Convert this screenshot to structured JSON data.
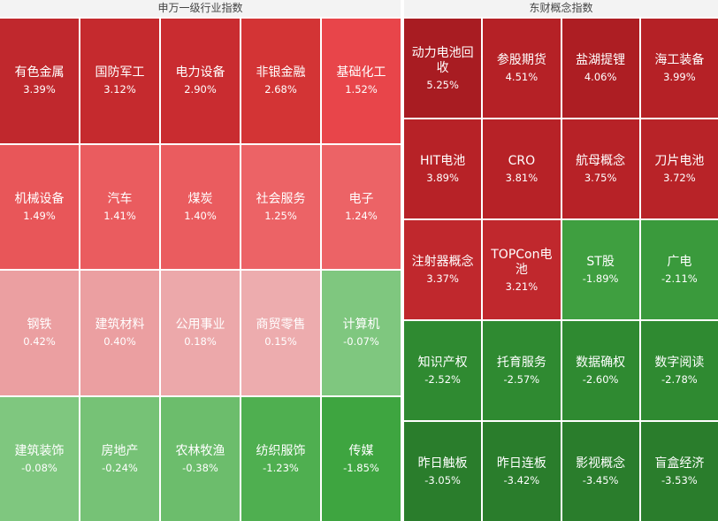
{
  "chart_data": [
    {
      "type": "heatmap",
      "title": "申万一级行业指数",
      "categories": [
        "有色金属",
        "国防军工",
        "电力设备",
        "非银金融",
        "基础化工",
        "机械设备",
        "汽车",
        "煤炭",
        "社会服务",
        "电子",
        "钢铁",
        "建筑材料",
        "公用事业",
        "商贸零售",
        "计算机",
        "建筑装饰",
        "房地产",
        "农林牧渔",
        "纺织服饰",
        "传媒"
      ],
      "values": [
        3.39,
        3.12,
        2.9,
        2.68,
        1.52,
        1.49,
        1.41,
        1.4,
        1.25,
        1.24,
        0.42,
        0.4,
        0.18,
        0.15,
        -0.07,
        -0.08,
        -0.24,
        -0.38,
        -1.23,
        -1.85
      ],
      "value_labels": [
        "3.39%",
        "3.12%",
        "2.90%",
        "2.68%",
        "1.52%",
        "1.49%",
        "1.41%",
        "1.40%",
        "1.25%",
        "1.24%",
        "0.42%",
        "0.40%",
        "0.18%",
        "0.15%",
        "-0.07%",
        "-0.08%",
        "-0.24%",
        "-0.38%",
        "-1.23%",
        "-1.85%"
      ],
      "colors": [
        "#c0282d",
        "#c52a2e",
        "#c92c30",
        "#d33435",
        "#e8454a",
        "#e85659",
        "#ea5c5f",
        "#ea5c5f",
        "#ec6366",
        "#ec6366",
        "#eb9fa1",
        "#eb9fa1",
        "#eca8aa",
        "#edacae",
        "#7fc77f",
        "#7fc77f",
        "#76c276",
        "#6cbd6c",
        "#4faf50",
        "#3ea540"
      ]
    },
    {
      "type": "heatmap",
      "title": "东财概念指数",
      "categories": [
        "动力电池回收",
        "参股期货",
        "盐湖提锂",
        "海工装备",
        "HIT电池",
        "CRO",
        "航母概念",
        "刀片电池",
        "注射器概念",
        "TOPCon电池",
        "ST股",
        "广电",
        "知识产权",
        "托育服务",
        "数据确权",
        "数字阅读",
        "昨日触板",
        "昨日连板",
        "影视概念",
        "盲盒经济"
      ],
      "values": [
        5.25,
        4.51,
        4.06,
        3.99,
        3.89,
        3.81,
        3.75,
        3.72,
        3.37,
        3.21,
        -1.89,
        -2.11,
        -2.52,
        -2.57,
        -2.6,
        -2.78,
        -3.05,
        -3.42,
        -3.45,
        -3.53
      ],
      "value_labels": [
        "5.25%",
        "4.51%",
        "4.06%",
        "3.99%",
        "3.89%",
        "3.81%",
        "3.75%",
        "3.72%",
        "3.37%",
        "3.21%",
        "-1.89%",
        "-2.11%",
        "-2.52%",
        "-2.57%",
        "-2.60%",
        "-2.78%",
        "-3.05%",
        "-3.42%",
        "-3.45%",
        "-3.53%"
      ],
      "colors": [
        "#a81c22",
        "#b52126",
        "#ad1e23",
        "#b52126",
        "#b72227",
        "#b72227",
        "#b72227",
        "#b82328",
        "#c0282d",
        "#c0282d",
        "#3f9f40",
        "#3a9a3c",
        "#2f8a31",
        "#2f8a31",
        "#2f8a31",
        "#2f8a31",
        "#2a7d2c",
        "#2a7d2c",
        "#2a7d2c",
        "#2a7d2c"
      ]
    }
  ]
}
